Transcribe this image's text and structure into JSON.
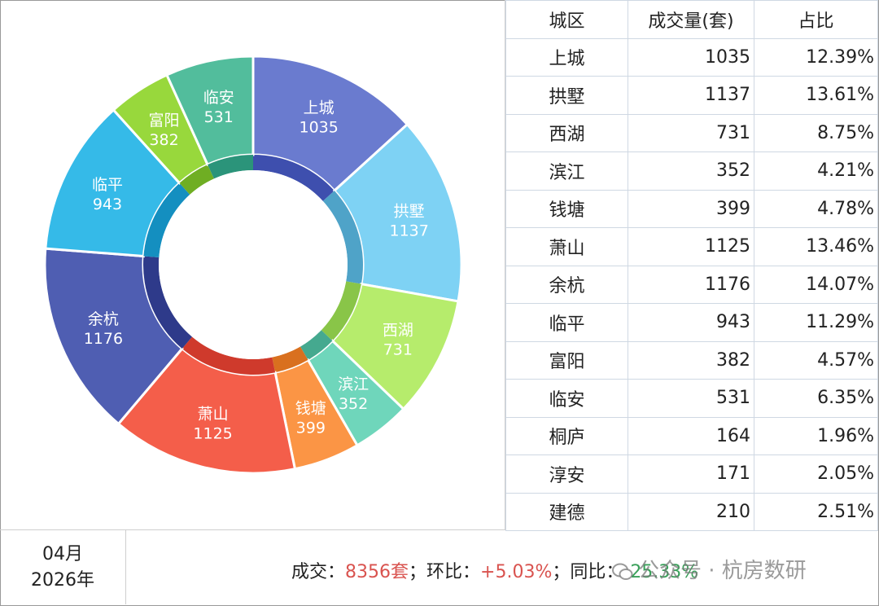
{
  "chart_data": {
    "type": "pie",
    "variant": "donut",
    "categories": [
      "上城",
      "拱墅",
      "西湖",
      "滨江",
      "钱塘",
      "萧山",
      "余杭",
      "临平",
      "富阳",
      "临安"
    ],
    "values": [
      1035,
      1137,
      731,
      352,
      399,
      1125,
      1176,
      943,
      382,
      531
    ],
    "colors": [
      "#6a7bcf",
      "#7ed2f4",
      "#b6ec6c",
      "#6fd6bb",
      "#fb9545",
      "#f45e4a",
      "#4f5eb2",
      "#35bae8",
      "#98d83c",
      "#52bd9c"
    ],
    "inner_ring_colors": [
      "#3e4fae",
      "#4fa3c8",
      "#89c548",
      "#45a98f",
      "#d9701f",
      "#cf3a2c",
      "#2e3a8a",
      "#148fc0",
      "#6fae23",
      "#2b947a"
    ],
    "label_color": "#ffffff",
    "legend": "none"
  },
  "table": {
    "headers": [
      "城区",
      "成交量(套)",
      "占比"
    ],
    "rows": [
      [
        "上城",
        "1035",
        "12.39%"
      ],
      [
        "拱墅",
        "1137",
        "13.61%"
      ],
      [
        "西湖",
        "731",
        "8.75%"
      ],
      [
        "滨江",
        "352",
        "4.21%"
      ],
      [
        "钱塘",
        "399",
        "4.78%"
      ],
      [
        "萧山",
        "1125",
        "13.46%"
      ],
      [
        "余杭",
        "1176",
        "14.07%"
      ],
      [
        "临平",
        "943",
        "11.29%"
      ],
      [
        "富阳",
        "382",
        "4.57%"
      ],
      [
        "临安",
        "531",
        "6.35%"
      ],
      [
        "桐庐",
        "164",
        "1.96%"
      ],
      [
        "淳安",
        "171",
        "2.05%"
      ],
      [
        "建德",
        "210",
        "2.51%"
      ]
    ]
  },
  "footer": {
    "month": "04月",
    "year": "2026年",
    "deal_label": "成交：",
    "deal_value": "8356套",
    "sep1": "；环比：",
    "mom_value": "+5.03%",
    "sep2": "；同比：",
    "yoy_value": "-25.33%",
    "watermark": "公众号 · 杭房数研",
    "accent_red": "#d9534f",
    "accent_green": "#3aa05a"
  }
}
